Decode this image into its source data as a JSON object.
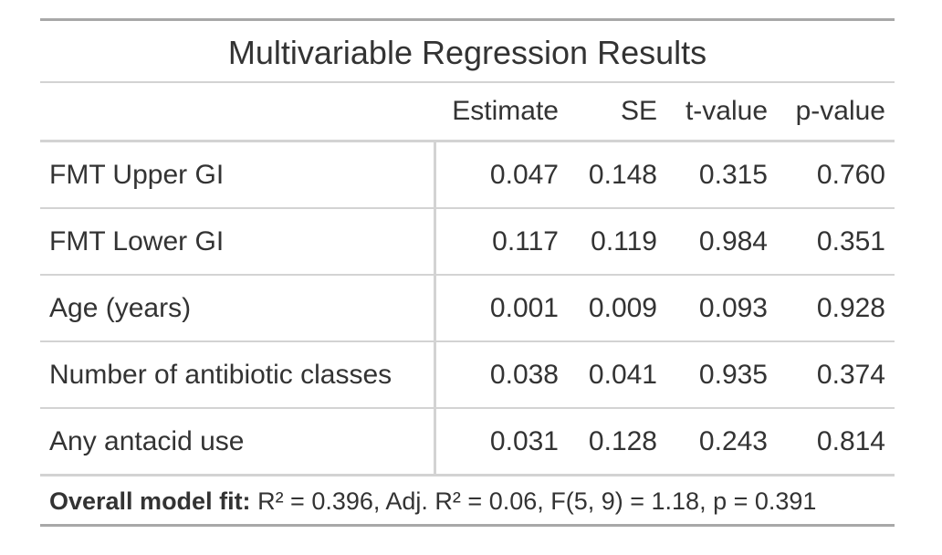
{
  "table": {
    "title": "Multivariable Regression Results",
    "columns": {
      "label": "",
      "estimate": "Estimate",
      "se": "SE",
      "t": "t-value",
      "p": "p-value"
    },
    "rows": [
      {
        "label": "FMT Upper GI",
        "estimate": "0.047",
        "se": "0.148",
        "t": "0.315",
        "p": "0.760"
      },
      {
        "label": "FMT Lower GI",
        "estimate": "0.117",
        "se": "0.119",
        "t": "0.984",
        "p": "0.351"
      },
      {
        "label": "Age (years)",
        "estimate": "0.001",
        "se": "0.009",
        "t": "0.093",
        "p": "0.928"
      },
      {
        "label": "Number of antibiotic classes",
        "estimate": "0.038",
        "se": "0.041",
        "t": "0.935",
        "p": "0.374"
      },
      {
        "label": "Any antacid use",
        "estimate": "0.031",
        "se": "0.128",
        "t": "0.243",
        "p": "0.814"
      }
    ],
    "footer": {
      "bold": "Overall model fit:",
      "text": " R² = 0.396, Adj. R² = 0.06, F(5, 9) = 1.18, p = 0.391"
    }
  },
  "colors": {
    "text": "#333333",
    "rule_dark": "#a8a8a8",
    "rule_light": "#d3d3d3"
  }
}
